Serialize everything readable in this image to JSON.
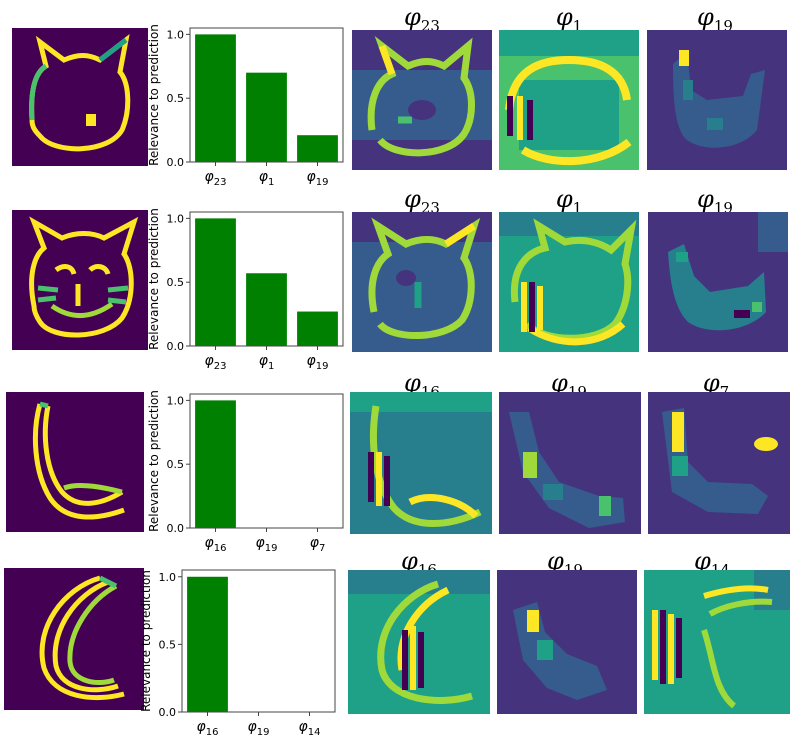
{
  "colors": {
    "bar": "#008000",
    "viridis": [
      "#440154",
      "#46337e",
      "#365c8d",
      "#277f8e",
      "#1fa187",
      "#4ac16d",
      "#9fda3a",
      "#fde725"
    ]
  },
  "rows": [
    {
      "input_icon": "cat-face-sketch",
      "chart": {
        "type": "bar",
        "ylabel": "Relevance to prediction",
        "categories": [
          "φ23",
          "φ1",
          "φ19"
        ],
        "values": [
          1.0,
          0.7,
          0.21
        ],
        "ylim": [
          0,
          1.05
        ],
        "yticks": [
          "0.0",
          "0.5",
          "1.0"
        ]
      },
      "feature_maps": [
        {
          "label": "φ23",
          "base": "φ",
          "sub": "23",
          "icon": "cat-face-heatmap"
        },
        {
          "label": "φ1",
          "base": "φ",
          "sub": "1",
          "icon": "cat-face-heatmap"
        },
        {
          "label": "φ19",
          "base": "φ",
          "sub": "19",
          "icon": "cat-blob-heatmap"
        }
      ]
    },
    {
      "input_icon": "cat-face-sketch",
      "chart": {
        "type": "bar",
        "ylabel": "Relevance to prediction",
        "categories": [
          "φ23",
          "φ1",
          "φ19"
        ],
        "values": [
          1.0,
          0.57,
          0.27
        ],
        "ylim": [
          0,
          1.05
        ],
        "yticks": [
          "0.0",
          "0.5",
          "1.0"
        ]
      },
      "feature_maps": [
        {
          "label": "φ23",
          "base": "φ",
          "sub": "23",
          "icon": "cat-face-heatmap"
        },
        {
          "label": "φ1",
          "base": "φ",
          "sub": "1",
          "icon": "cat-face-heatmap"
        },
        {
          "label": "φ19",
          "base": "φ",
          "sub": "19",
          "icon": "cat-blob-heatmap"
        }
      ]
    },
    {
      "input_icon": "banana-sketch",
      "chart": {
        "type": "bar",
        "ylabel": "Relevance to prediction",
        "categories": [
          "φ16",
          "φ19",
          "φ7"
        ],
        "values": [
          1.0,
          0.0,
          0.0
        ],
        "ylim": [
          0,
          1.05
        ],
        "yticks": [
          "0.0",
          "0.5",
          "1.0"
        ]
      },
      "feature_maps": [
        {
          "label": "φ16",
          "base": "φ",
          "sub": "16",
          "icon": "banana-heatmap"
        },
        {
          "label": "φ19",
          "base": "φ",
          "sub": "19",
          "icon": "banana-blob-heatmap"
        },
        {
          "label": "φ7",
          "base": "φ",
          "sub": "7",
          "icon": "banana-spot-heatmap"
        }
      ]
    },
    {
      "input_icon": "crescent-banana-sketch",
      "chart": {
        "type": "bar",
        "ylabel": "Relevance to prediction",
        "categories": [
          "φ16",
          "φ19",
          "φ14"
        ],
        "values": [
          1.0,
          0.0,
          0.0
        ],
        "ylim": [
          0,
          1.05
        ],
        "yticks": [
          "0.0",
          "0.5",
          "1.0"
        ]
      },
      "feature_maps": [
        {
          "label": "φ16",
          "base": "φ",
          "sub": "16",
          "icon": "banana-heatmap"
        },
        {
          "label": "φ19",
          "base": "φ",
          "sub": "19",
          "icon": "banana-blob-heatmap"
        },
        {
          "label": "φ14",
          "base": "φ",
          "sub": "14",
          "icon": "banana-stripes-heatmap"
        }
      ]
    }
  ]
}
